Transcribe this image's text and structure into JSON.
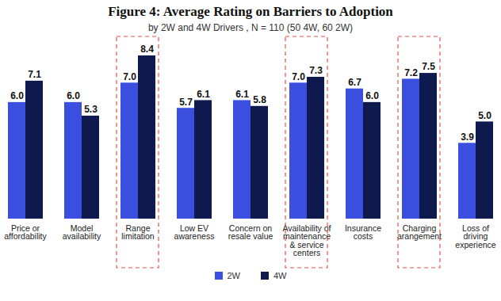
{
  "chart_data": {
    "type": "bar",
    "title": "Figure 4: Average Rating on Barriers to Adoption",
    "subtitle": "by 2W and 4W Drivers , N = 110 (50 4W, 60 2W)",
    "categories": [
      "Price or\naffordability",
      "Model\navailability",
      "Range\nlimitation",
      "Low EV\nawareness",
      "Concern on\nresale value",
      "Availability of\nmaintenance\n& service\ncenters",
      "Insurance\ncosts",
      "Charging\narangement",
      "Loss of\ndriving\nexperience"
    ],
    "series": [
      {
        "name": "2W",
        "color": "#3a4ee0",
        "values": [
          6.0,
          6.0,
          7.0,
          5.7,
          6.1,
          7.0,
          6.7,
          7.2,
          3.9
        ],
        "value_labels": [
          "6.0",
          "6.0",
          "7.0",
          "5.7",
          "6.1",
          "7.0",
          "6.7",
          "7.2",
          "3.9"
        ]
      },
      {
        "name": "4W",
        "color": "#0e1a4d",
        "values": [
          7.1,
          5.3,
          8.4,
          6.1,
          5.8,
          7.3,
          6.0,
          7.5,
          5.0
        ],
        "value_labels": [
          "7.1",
          "5.3",
          "8.4",
          "6.1",
          "5.8",
          "7.3",
          "6.0",
          "7.5",
          "5.0"
        ]
      }
    ],
    "ylim": [
      0,
      8.4
    ],
    "yticks": [],
    "tick_labels": "x",
    "data_labels": true,
    "grid": false,
    "legend": "bottom",
    "highlighted": [
      "Range\nlimitation",
      "Availability of\nmaintenance\n& service\ncenters",
      "Charging\narangement"
    ]
  }
}
